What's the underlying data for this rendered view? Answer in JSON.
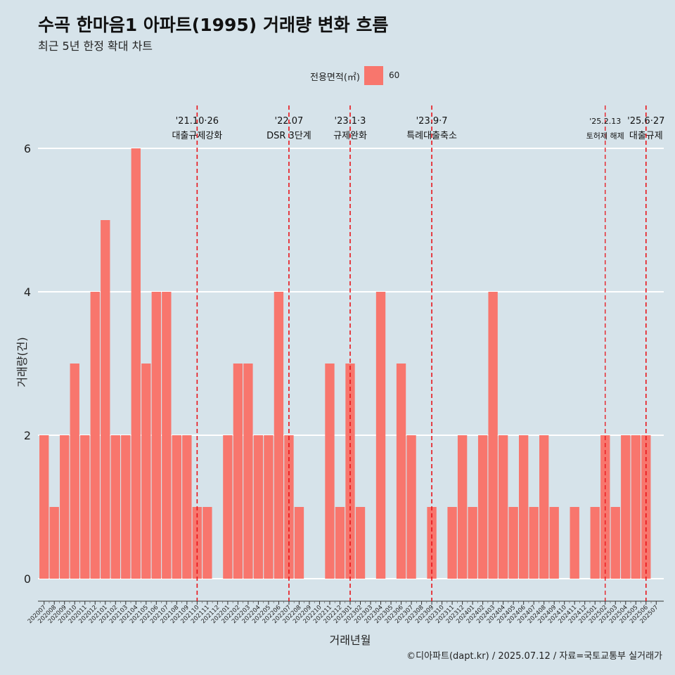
{
  "title": "수곡 한마음1 아파트(1995) 거래량 변화 흐름",
  "subtitle": "최근 5년 한정 확대 차트",
  "legend": {
    "title": "전용면적(㎡)",
    "label": "60",
    "color": "#f8766d"
  },
  "caption": "©디아파트(dapt.kr) / 2025.07.12 / 자료=국토교통부 실거래가",
  "chart_data": {
    "type": "bar",
    "xlabel": "거래년월",
    "ylabel": "거래량(건)",
    "ylim": [
      0,
      6
    ],
    "yticks": [
      0,
      2,
      4,
      6
    ],
    "grid": "horizontal",
    "legend_position": "top",
    "bar_color": "#f8766d",
    "categories": [
      "202007",
      "202008",
      "202009",
      "202010",
      "202011",
      "202012",
      "202101",
      "202102",
      "202103",
      "202104",
      "202105",
      "202106",
      "202107",
      "202108",
      "202109",
      "202110",
      "202111",
      "202112",
      "202201",
      "202202",
      "202203",
      "202204",
      "202205",
      "202206",
      "202207",
      "202208",
      "202209",
      "202210",
      "202211",
      "202212",
      "202301",
      "202302",
      "202303",
      "202304",
      "202305",
      "202306",
      "202307",
      "202308",
      "202309",
      "202310",
      "202311",
      "202312",
      "202401",
      "202402",
      "202403",
      "202404",
      "202405",
      "202406",
      "202407",
      "202408",
      "202409",
      "202410",
      "202411",
      "202412",
      "202501",
      "202502",
      "202503",
      "202504",
      "202505",
      "202506",
      "202507"
    ],
    "series": [
      {
        "name": "60",
        "values": [
          2,
          1,
          2,
          3,
          2,
          4,
          5,
          2,
          2,
          6,
          3,
          4,
          4,
          2,
          2,
          1,
          1,
          0,
          2,
          3,
          3,
          2,
          2,
          4,
          2,
          1,
          0,
          0,
          3,
          1,
          3,
          1,
          0,
          4,
          0,
          3,
          2,
          0,
          1,
          0,
          1,
          2,
          1,
          2,
          4,
          2,
          1,
          2,
          1,
          2,
          1,
          0,
          1,
          0,
          1,
          2,
          1,
          2,
          2,
          2,
          0
        ]
      }
    ],
    "annotations": [
      {
        "x": "202110",
        "date": "'21.10·26",
        "label": "대출규제강화",
        "small": false
      },
      {
        "x": "202207",
        "date": "'22.07",
        "label": "DSR 3단계",
        "small": false
      },
      {
        "x": "202301",
        "date": "'23.1·3",
        "label": "규제완화",
        "small": false
      },
      {
        "x": "202309",
        "date": "'23.9·7",
        "label": "특례대출축소",
        "small": false
      },
      {
        "x": "202502",
        "date": "'25.2.13",
        "label": "토허제 해제",
        "small": true
      },
      {
        "x": "202506",
        "date": "'25.6·27",
        "label": "대출규제",
        "small": false
      }
    ],
    "annotation_color": "#e8141a"
  }
}
